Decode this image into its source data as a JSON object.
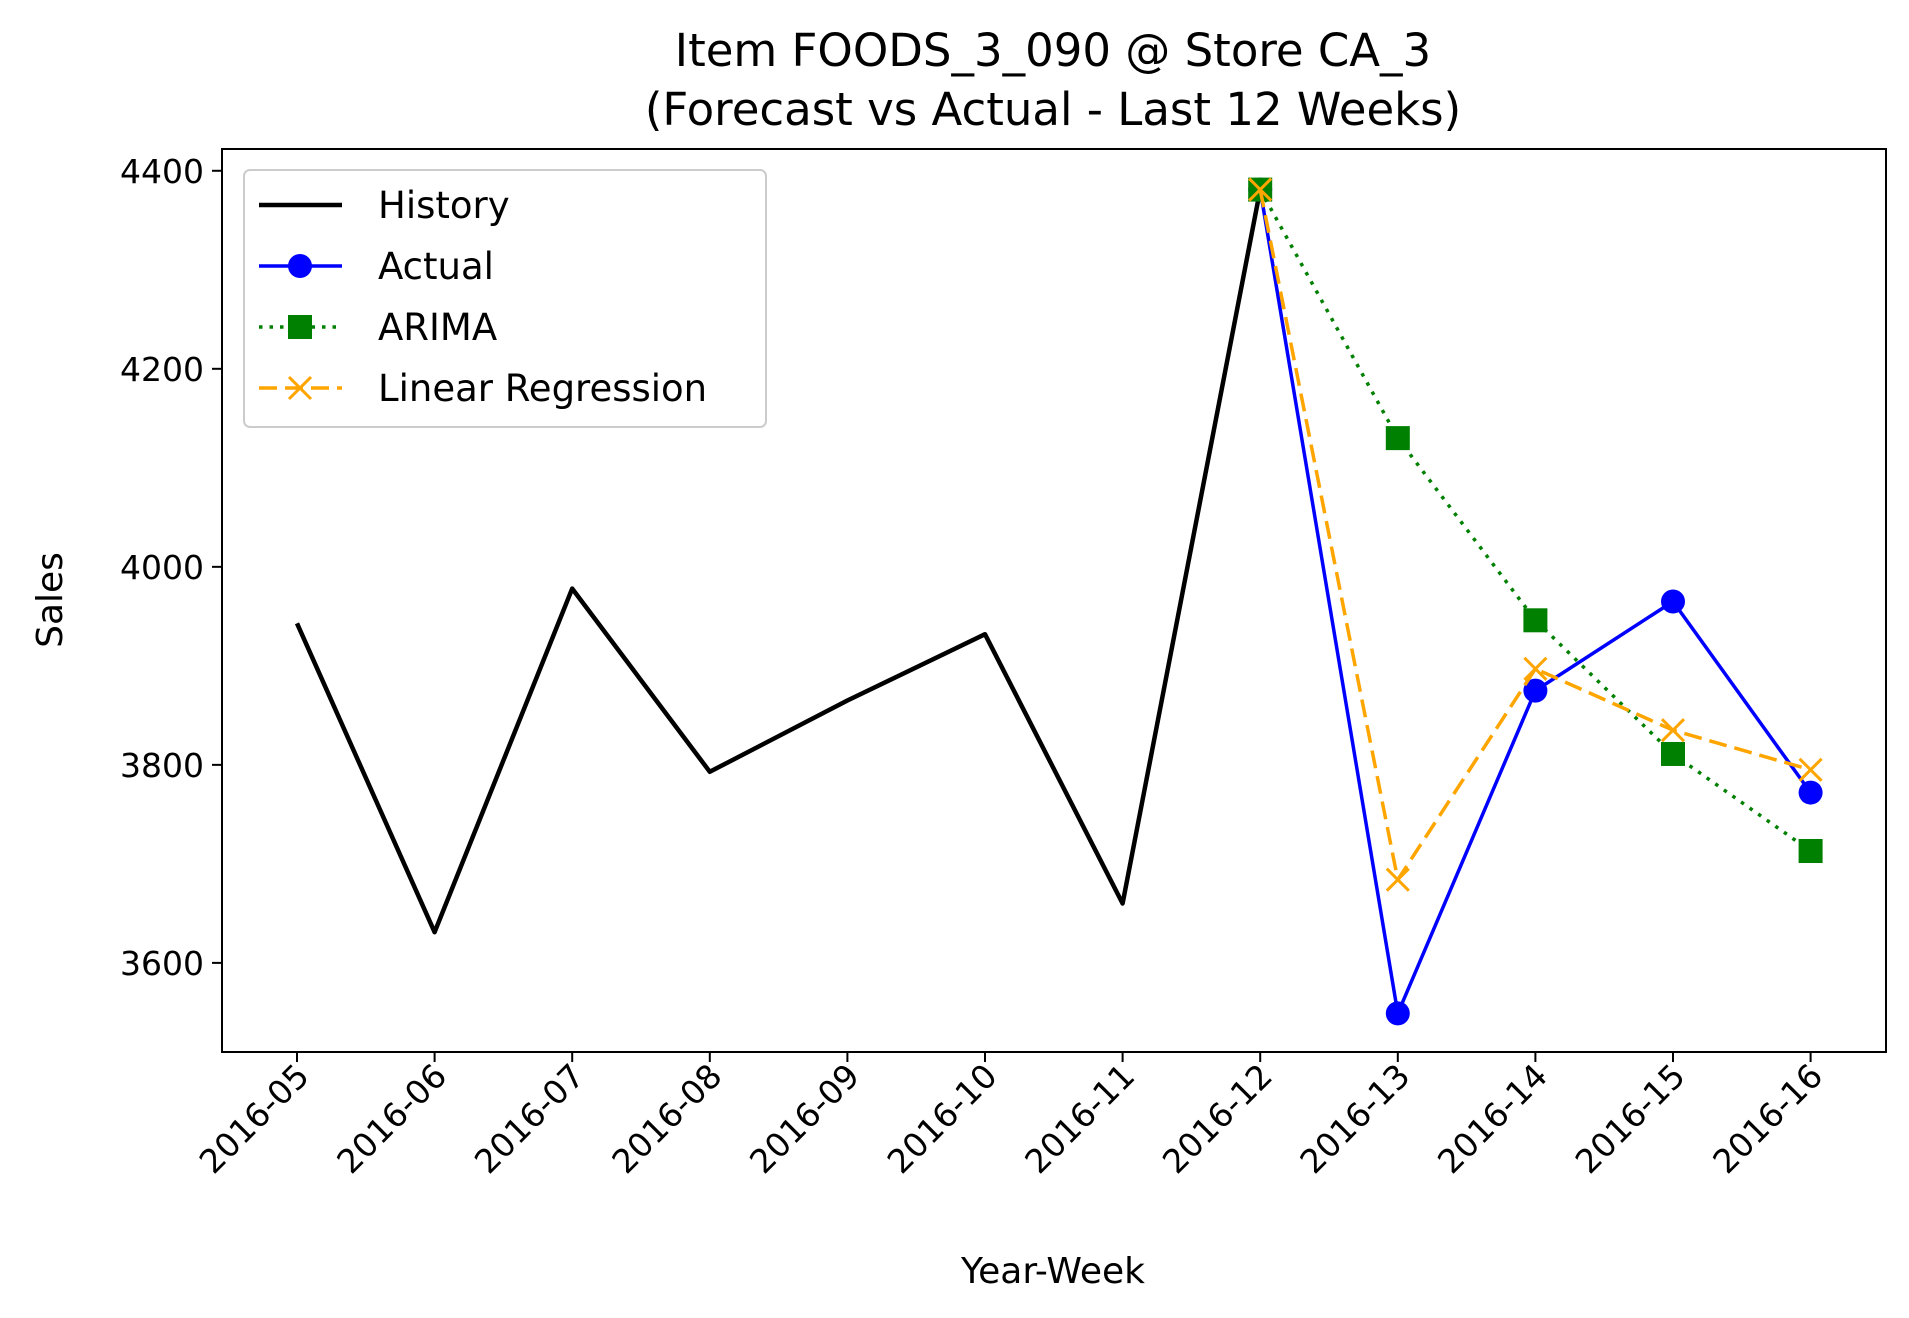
{
  "chart_data": {
    "type": "line",
    "title": "Item FOODS_3_090 @ Store CA_3",
    "subtitle": "(Forecast vs Actual - Last 12 Weeks)",
    "xlabel": "Year-Week",
    "ylabel": "Sales",
    "categories": [
      "2016-05",
      "2016-06",
      "2016-07",
      "2016-08",
      "2016-09",
      "2016-10",
      "2016-11",
      "2016-12",
      "2016-13",
      "2016-14",
      "2016-15",
      "2016-16"
    ],
    "yticks": [
      3600,
      3800,
      4000,
      4200,
      4400
    ],
    "ylim": [
      3510,
      4422
    ],
    "grid": false,
    "legend_position": "top-left",
    "series": [
      {
        "name": "History",
        "color": "#000000",
        "style": "solid",
        "marker": "none",
        "x": [
          "2016-05",
          "2016-06",
          "2016-07",
          "2016-08",
          "2016-09",
          "2016-10",
          "2016-11",
          "2016-12"
        ],
        "values": [
          3943,
          3631,
          3978,
          3793,
          3865,
          3932,
          3660,
          4381
        ]
      },
      {
        "name": "Actual",
        "color": "#0000ff",
        "style": "solid",
        "marker": "circle",
        "x": [
          "2016-12",
          "2016-13",
          "2016-14",
          "2016-15",
          "2016-16"
        ],
        "values": [
          4381,
          3549,
          3875,
          3965,
          3772
        ]
      },
      {
        "name": "ARIMA",
        "color": "#008000",
        "style": "dotted",
        "marker": "square",
        "x": [
          "2016-12",
          "2016-13",
          "2016-14",
          "2016-15",
          "2016-16"
        ],
        "values": [
          4381,
          4130,
          3946,
          3811,
          3713
        ]
      },
      {
        "name": "Linear Regression",
        "color": "#ffa500",
        "style": "dashed",
        "marker": "x",
        "x": [
          "2016-12",
          "2016-13",
          "2016-14",
          "2016-15",
          "2016-16"
        ],
        "values": [
          4381,
          3684,
          3897,
          3835,
          3795
        ]
      }
    ]
  }
}
